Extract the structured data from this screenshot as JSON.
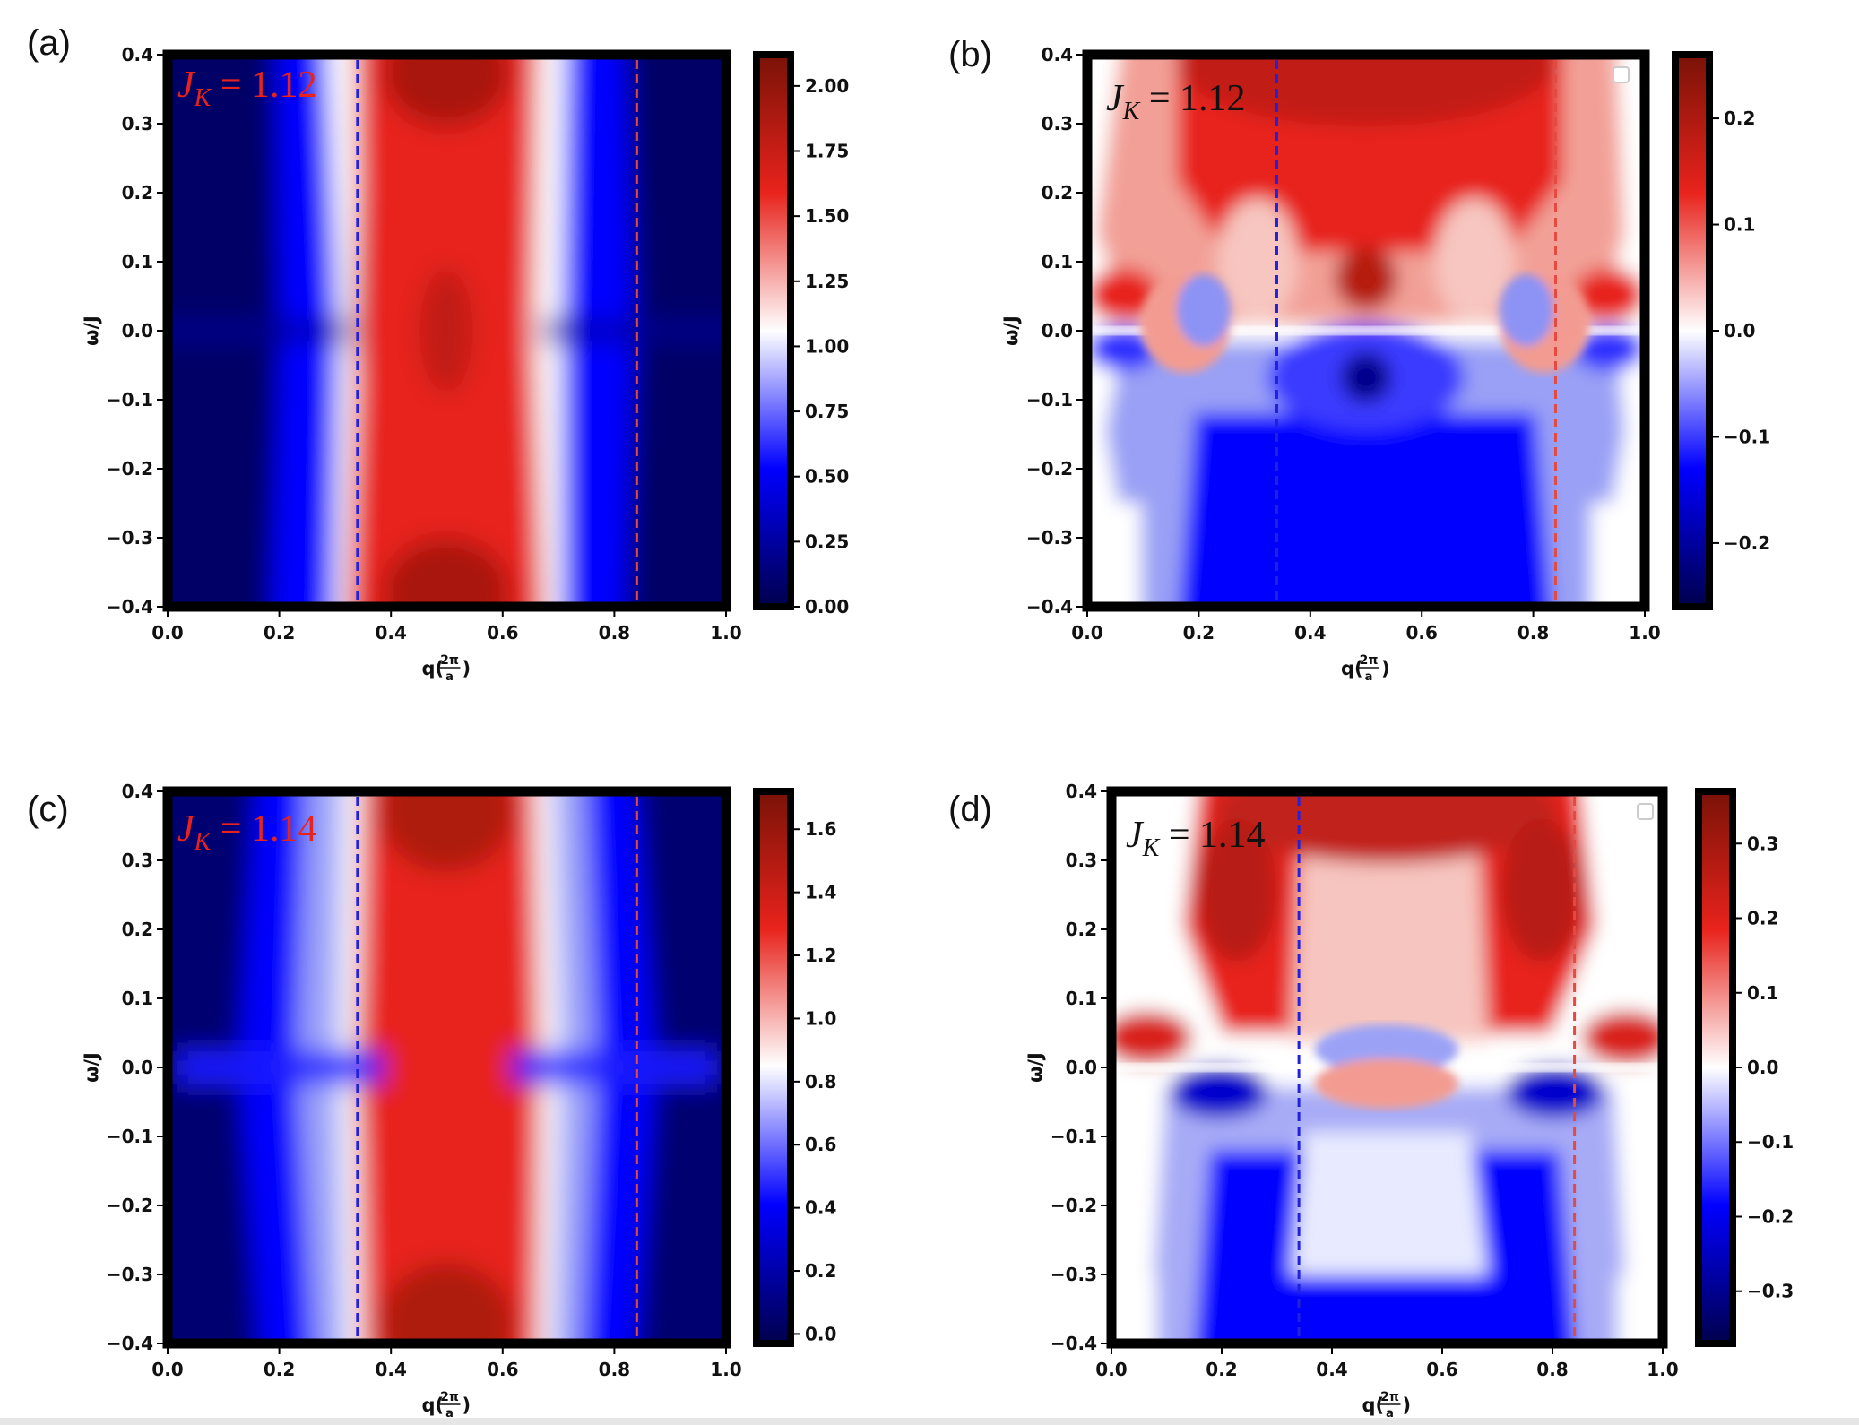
{
  "colors": {
    "dark_blue": "#00004c",
    "blue": "#0000ff",
    "white": "#ffffff",
    "red": "#e8231c",
    "dark_red": "#7a1207",
    "blue_dashed": "#2222dd",
    "red_dashed": "#e44a3f",
    "frame": "#000000"
  },
  "shared_axes": {
    "xlabel": "q(2π/a)",
    "xlabel_main": "q",
    "xlabel_frac_num": "2π",
    "xlabel_frac_den": "a",
    "ylabel": "ω/J",
    "x_ticks": [
      "0.0",
      "0.2",
      "0.4",
      "0.6",
      "0.8",
      "1.0"
    ],
    "y_ticks": [
      "0.4",
      "0.3",
      "0.2",
      "0.1",
      "0.0",
      "−0.1",
      "−0.2",
      "−0.3",
      "−0.4"
    ]
  },
  "chart_data": [
    {
      "panel": "(a)",
      "type": "heatmap",
      "annotation": "J_K = 1.12",
      "annotation_color": "#e8231c",
      "xlabel": "q(2π/a)",
      "ylabel": "ω/J",
      "xlim": [
        0.0,
        1.0
      ],
      "ylim": [
        -0.4,
        0.4
      ],
      "colorbar_range": [
        0.0,
        2.12
      ],
      "colorbar_center": 1.06,
      "colorbar_ticks": [
        "0.00",
        "0.25",
        "0.50",
        "0.75",
        "1.00",
        "1.25",
        "1.50",
        "1.75",
        "2.00"
      ],
      "colorbar_tick_values": [
        0.0,
        0.25,
        0.5,
        0.75,
        1.0,
        1.25,
        1.5,
        1.75,
        2.0
      ],
      "dashed_lines": [
        {
          "x": 0.34,
          "color": "blue"
        },
        {
          "x": 0.84,
          "color": "red"
        }
      ],
      "legend_box": false
    },
    {
      "panel": "(b)",
      "type": "heatmap",
      "annotation": "J_K = 1.12",
      "annotation_color": "#111111",
      "xlabel": "q(2π/a)",
      "ylabel": "ω/J",
      "xlim": [
        0.0,
        1.0
      ],
      "ylim": [
        -0.4,
        0.4
      ],
      "colorbar_range": [
        -0.26,
        0.26
      ],
      "colorbar_center": 0.0,
      "colorbar_ticks": [
        "0.2",
        "0.1",
        "0.0",
        "−0.1",
        "−0.2"
      ],
      "colorbar_tick_values": [
        0.2,
        0.1,
        0.0,
        -0.1,
        -0.2
      ],
      "dashed_lines": [
        {
          "x": 0.34,
          "color": "blue"
        },
        {
          "x": 0.84,
          "color": "red"
        }
      ],
      "legend_box": true
    },
    {
      "panel": "(c)",
      "type": "heatmap",
      "annotation": "J_K = 1.14",
      "annotation_color": "#e8231c",
      "xlabel": "q(2π/a)",
      "ylabel": "ω/J",
      "xlim": [
        0.0,
        1.0
      ],
      "ylim": [
        -0.4,
        0.4
      ],
      "colorbar_range": [
        -0.03,
        1.72
      ],
      "colorbar_center": 0.85,
      "colorbar_ticks": [
        "1.6",
        "1.4",
        "1.2",
        "1.0",
        "0.8",
        "0.6",
        "0.4",
        "0.2",
        "0.0"
      ],
      "colorbar_tick_values": [
        1.6,
        1.4,
        1.2,
        1.0,
        0.8,
        0.6,
        0.4,
        0.2,
        0.0
      ],
      "dashed_lines": [
        {
          "x": 0.34,
          "color": "blue"
        },
        {
          "x": 0.84,
          "color": "red"
        }
      ],
      "legend_box": false
    },
    {
      "panel": "(d)",
      "type": "heatmap",
      "annotation": "J_K = 1.14",
      "annotation_color": "#111111",
      "xlabel": "q(2π/a)",
      "ylabel": "ω/J",
      "xlim": [
        0.0,
        1.0
      ],
      "ylim": [
        -0.4,
        0.4
      ],
      "colorbar_range": [
        -0.37,
        0.37
      ],
      "colorbar_center": 0.0,
      "colorbar_ticks": [
        "0.3",
        "0.2",
        "0.1",
        "0.0",
        "−0.1",
        "−0.2",
        "−0.3"
      ],
      "colorbar_tick_values": [
        0.3,
        0.2,
        0.1,
        0.0,
        -0.1,
        -0.2,
        -0.3
      ],
      "dashed_lines": [
        {
          "x": 0.34,
          "color": "blue"
        },
        {
          "x": 0.84,
          "color": "red"
        }
      ],
      "legend_box": true
    }
  ]
}
